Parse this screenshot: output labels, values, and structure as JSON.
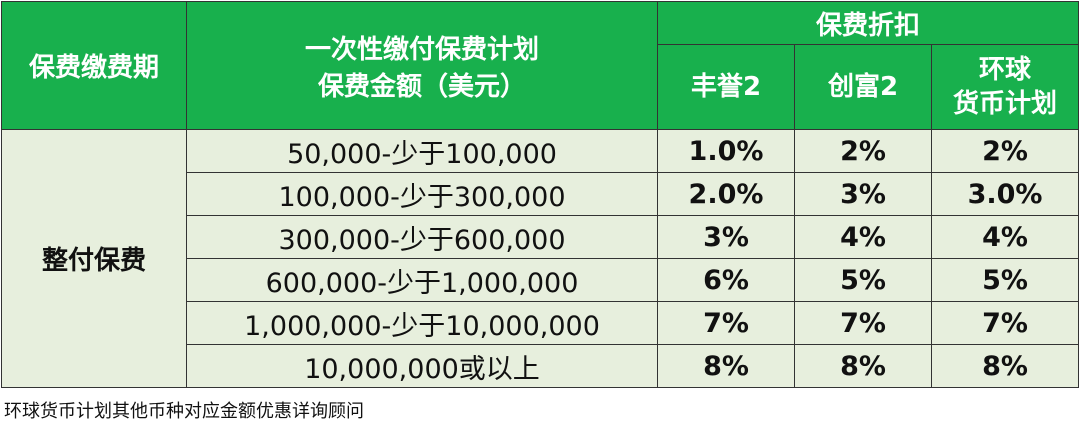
{
  "header": {
    "period_label": "保费缴费期",
    "amount_label_line1": "一次性缴付保费计划",
    "amount_label_line2": "保费金额（美元）",
    "discount_label": "保费折扣",
    "plans": [
      {
        "line1": "丰誉2",
        "line2": ""
      },
      {
        "line1": "创富2",
        "line2": ""
      },
      {
        "line1": "环球",
        "line2": "货币计划"
      }
    ]
  },
  "period_value": "整付保费",
  "rows": [
    {
      "range": "50,000-少于100,000",
      "rates": [
        "1.0%",
        "2%",
        "2%"
      ]
    },
    {
      "range": "100,000-少于300,000",
      "rates": [
        "2.0%",
        "3%",
        "3.0%"
      ]
    },
    {
      "range": "300,000-少于600,000",
      "rates": [
        "3%",
        "4%",
        "4%"
      ]
    },
    {
      "range": "600,000-少于1,000,000",
      "rates": [
        "6%",
        "5%",
        "5%"
      ]
    },
    {
      "range": "1,000,000-少于10,000,000",
      "rates": [
        "7%",
        "7%",
        "7%"
      ]
    },
    {
      "range": "10,000,000或以上",
      "rates": [
        "8%",
        "8%",
        "8%"
      ]
    }
  ],
  "footnote": "环球货币计划其他币种对应金额优惠详询顾问",
  "colors": {
    "header_bg": "#18b04d",
    "body_bg": "#e7efdd",
    "border": "#333333"
  }
}
